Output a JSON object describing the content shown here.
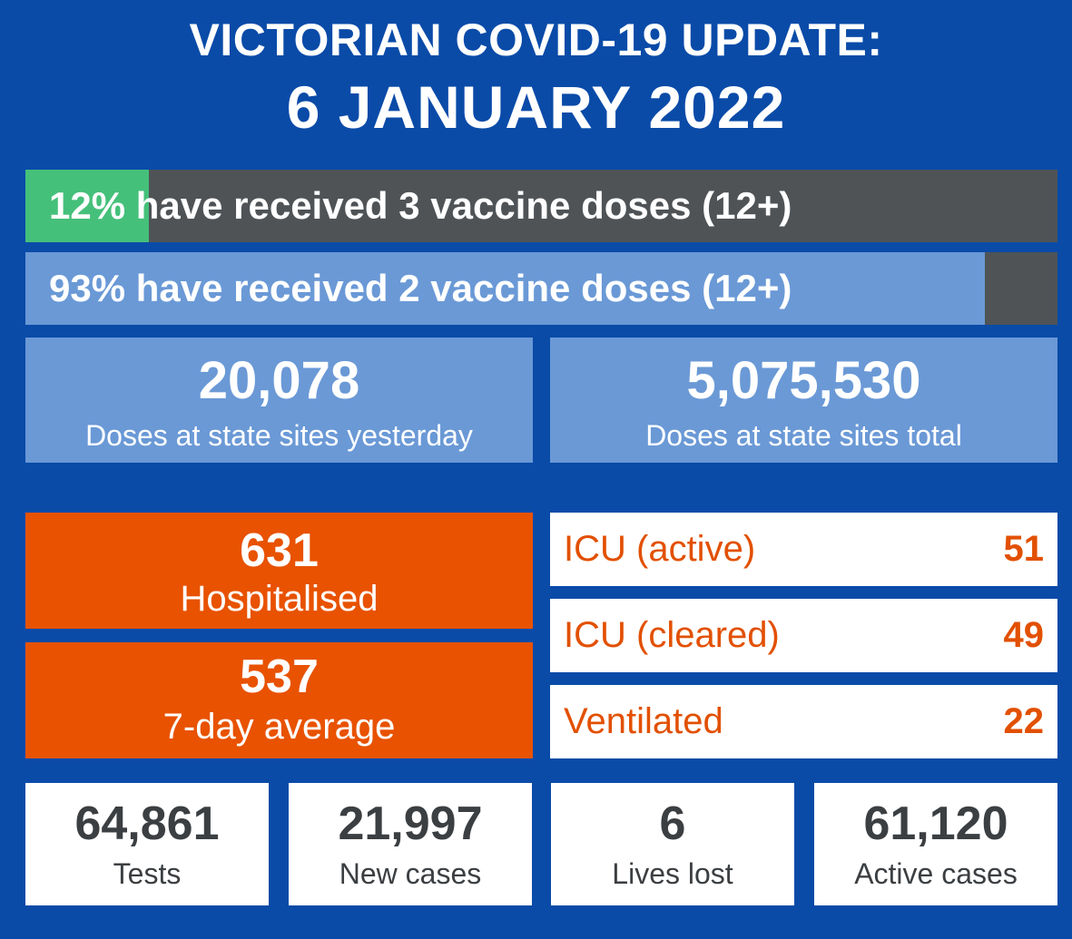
{
  "header": {
    "title": "VICTORIAN COVID-19 UPDATE:",
    "date": "6 JANUARY 2022"
  },
  "vaccination": {
    "three_doses": {
      "percent": 12,
      "text": "12% have received 3 vaccine doses (12+)"
    },
    "two_doses": {
      "percent": 93,
      "text": "93% have received 2 vaccine doses (12+)"
    }
  },
  "doses": {
    "yesterday": {
      "value": "20,078",
      "label": "Doses at state sites yesterday"
    },
    "total": {
      "value": "5,075,530",
      "label": "Doses at state sites total"
    }
  },
  "hospital": {
    "hospitalised": {
      "value": "631",
      "label": "Hospitalised"
    },
    "average": {
      "value": "537",
      "label": "7-day average"
    }
  },
  "icu": [
    {
      "label": "ICU (active)",
      "value": "51"
    },
    {
      "label": "ICU (cleared)",
      "value": "49"
    },
    {
      "label": "Ventilated",
      "value": "22"
    }
  ],
  "stats": [
    {
      "value": "64,861",
      "label": "Tests"
    },
    {
      "value": "21,997",
      "label": "New cases"
    },
    {
      "value": "6",
      "label": "Lives lost"
    },
    {
      "value": "61,120",
      "label": "Active cases"
    }
  ],
  "colors": {
    "background": "#0a4ba8",
    "green": "#45c07a",
    "light_blue": "#6a99d6",
    "dark_grey": "#4f5356",
    "orange": "#e85200"
  }
}
